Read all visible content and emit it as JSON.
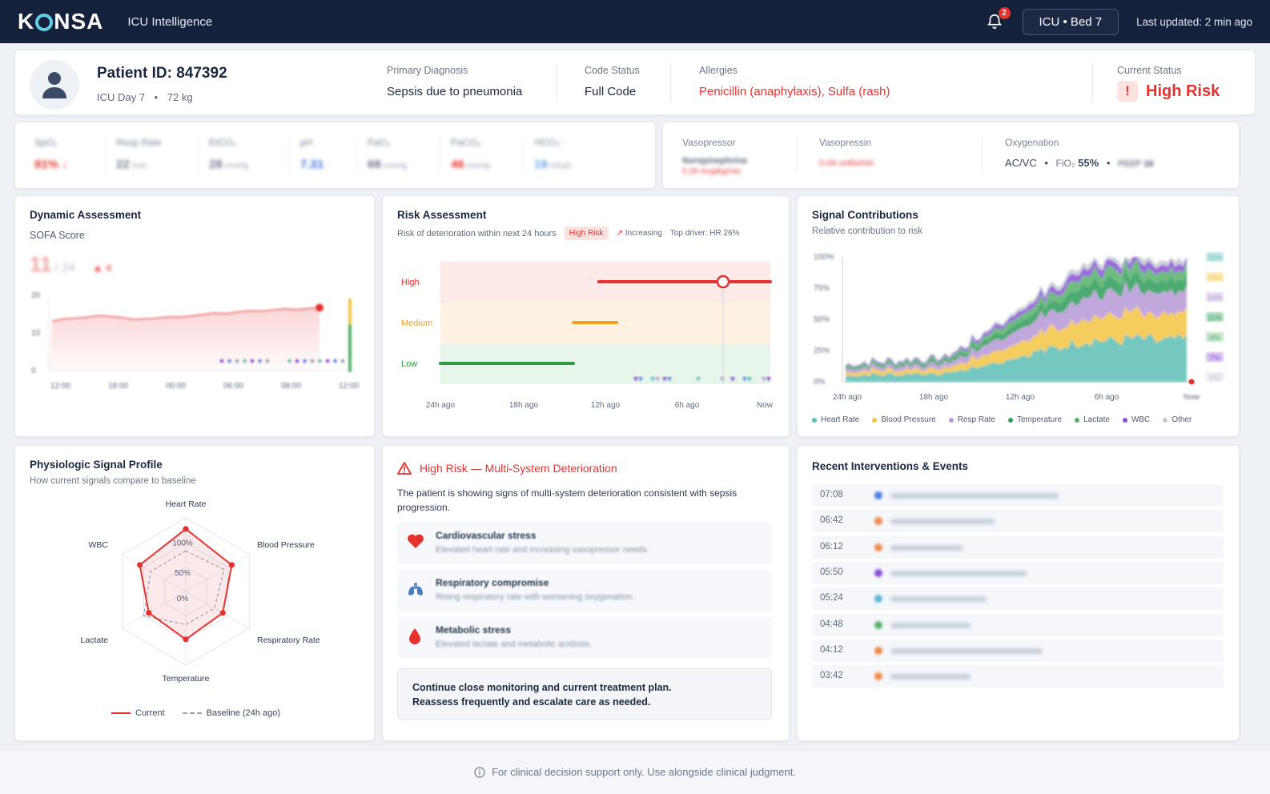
{
  "app": {
    "logo": "KONSA",
    "title": "ICU Intelligence",
    "notification_count": "2",
    "bed": "ICU • Bed 7",
    "last_updated": "Last updated: 2 min ago"
  },
  "patient": {
    "id": "Patient ID: 847392",
    "icu_day": "ICU Day 7",
    "weight": "72 kg",
    "diagnosis_label": "Primary Diagnosis",
    "diagnosis": "Sepsis due to pneumonia",
    "code_status_label": "Code Status",
    "code_status": "Full Code",
    "allergies_label": "Allergies",
    "allergies": "Penicillin (anaphylaxis), Sulfa (rash)",
    "current_status_label": "Current Status",
    "current_status": "High Risk"
  },
  "vitals": [
    {
      "label": "SpO₂",
      "value": "91% ↓",
      "unit": "",
      "color": "#e5322d"
    },
    {
      "label": "Resp Rate",
      "value": "22",
      "unit": "/min",
      "color": "#6f7888"
    },
    {
      "label": "EtCO₂",
      "value": "28",
      "unit": "mmHg",
      "color": "#6f7888"
    },
    {
      "label": "pH",
      "value": "7.31",
      "unit": "",
      "color": "#3b6fd8"
    },
    {
      "label": "PaO₂",
      "value": "68",
      "unit": "mmHg",
      "color": "#6f7888"
    },
    {
      "label": "PaCO₂",
      "value": "46",
      "unit": "mmHg",
      "color": "#e5322d"
    },
    {
      "label": "HCO₃⁻",
      "value": "19",
      "unit": "mEq/L",
      "color": "#5fa3e8"
    }
  ],
  "support": {
    "vasopressor_label": "Vasopressor",
    "vasopressor_name": "Norepinephrine",
    "vasopressor_dose": "0.28 mcg/kg/min",
    "vasopressin_label": "Vasopressin",
    "vasopressin_dose": "0.04 units/min",
    "oxygenation_label": "Oxygenation",
    "mode": "AC/VC",
    "fio2_label": "FiO₂",
    "fio2": "55%",
    "peep_label": "PEEP",
    "peep": "10"
  },
  "dynamic": {
    "title": "Dynamic Assessment",
    "subtitle": "SOFA Score",
    "score": "11",
    "max": "/ 24",
    "delta": "▲ 4",
    "yticks": [
      "20",
      "10",
      "0"
    ],
    "xticks": [
      "12:00",
      "18:00",
      "00:00",
      "06:00",
      "08:00",
      "12:00"
    ]
  },
  "risk": {
    "title": "Risk Assessment",
    "subtitle": "Risk of deterioration within next 24 hours",
    "badge": "High Risk",
    "trend": "Increasing",
    "driver_label": "Top driver:",
    "driver": "HR 26%",
    "levels": [
      "High",
      "Medium",
      "Low"
    ],
    "xticks": [
      "24h ago",
      "18h ago",
      "12h ago",
      "6h ago",
      "Now"
    ]
  },
  "contrib": {
    "title": "Signal Contributions",
    "subtitle": "Relative contribution to risk",
    "yticks": [
      "100%",
      "75%",
      "50%",
      "25%",
      "0%"
    ],
    "xticks": [
      "24h ago",
      "18h ago",
      "12h ago",
      "6h ago",
      "Now"
    ],
    "right_values": [
      "26%",
      "19%",
      "14%",
      "11%",
      "9%",
      "7%",
      "4%"
    ],
    "legend": [
      {
        "name": "Heart Rate",
        "color": "#5bbfb5"
      },
      {
        "name": "Blood Pressure",
        "color": "#f4c542"
      },
      {
        "name": "Resp Rate",
        "color": "#b79ad6"
      },
      {
        "name": "Temperature",
        "color": "#2e9c5a"
      },
      {
        "name": "Lactate",
        "color": "#57b06a"
      },
      {
        "name": "WBC",
        "color": "#8a4fd6"
      },
      {
        "name": "Other",
        "color": "#c4c9d2"
      }
    ]
  },
  "profile": {
    "title": "Physiologic Signal Profile",
    "subtitle": "How current signals compare to baseline",
    "axes": [
      "Heart Rate",
      "Blood Pressure",
      "Respiratory Rate",
      "Temperature",
      "Lactate",
      "WBC"
    ],
    "rings": [
      "100%",
      "50%",
      "0%"
    ],
    "current": [
      0.85,
      0.72,
      0.58,
      0.65,
      0.58,
      0.72
    ],
    "baseline": [
      0.55,
      0.6,
      0.45,
      0.45,
      0.66,
      0.55
    ],
    "legend_current": "Current",
    "legend_baseline": "Baseline (24h ago)"
  },
  "alert": {
    "title": "High Risk — Multi-System Deterioration",
    "description": "The patient is showing signs of multi-system deterioration consistent with sepsis progression.",
    "items": [
      {
        "title": "Cardiovascular stress",
        "detail": "Elevated heart rate and increasing vasopressor needs.",
        "icon": "heart-icon"
      },
      {
        "title": "Respiratory compromise",
        "detail": "Rising respiratory rate with worsening oxygenation.",
        "icon": "lungs-icon"
      },
      {
        "title": "Metabolic stress",
        "detail": "Elevated lactate and metabolic acidosis.",
        "icon": "drop-icon"
      }
    ],
    "recommendation_1": "Continue close monitoring and current treatment plan.",
    "recommendation_2": "Reassess frequently and escalate care as needed."
  },
  "events": {
    "title": "Recent Interventions & Events",
    "items": [
      {
        "time": "07:08",
        "color": "#4a7fe0"
      },
      {
        "time": "06:42",
        "color": "#f08a4b"
      },
      {
        "time": "06:12",
        "color": "#f08a4b"
      },
      {
        "time": "05:50",
        "color": "#8a4fd6"
      },
      {
        "time": "05:24",
        "color": "#5bb5d6"
      },
      {
        "time": "04:48",
        "color": "#57b06a"
      },
      {
        "time": "04:12",
        "color": "#f08a4b"
      },
      {
        "time": "03:42",
        "color": "#f08a4b"
      }
    ]
  },
  "footer": "For clinical decision support only. Use alongside clinical judgment."
}
